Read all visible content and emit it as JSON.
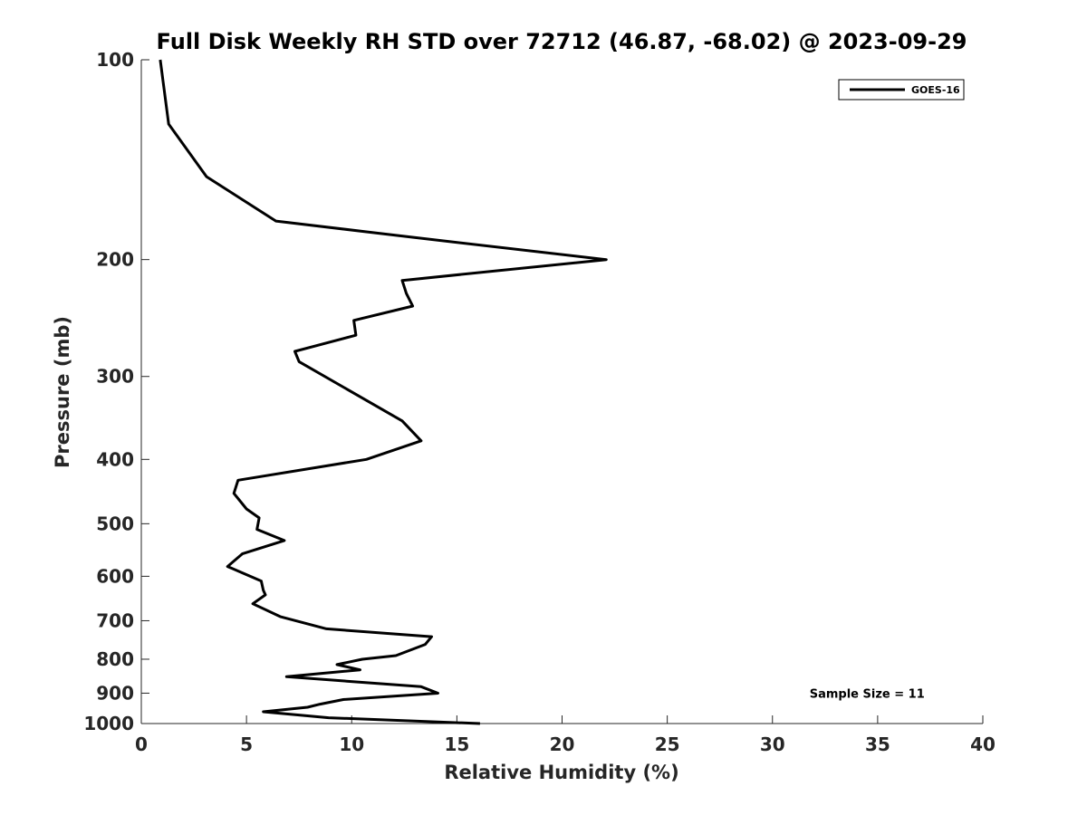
{
  "chart_data": {
    "type": "line",
    "title": "Full Disk Weekly RH STD over 72712 (46.87, -68.02) @ 2023-09-29",
    "xlabel": "Relative Humidity (%)",
    "ylabel": "Pressure (mb)",
    "xlim": [
      0,
      40
    ],
    "ylim": [
      100,
      1000
    ],
    "yscale": "log",
    "y_reversed": true,
    "xticks": [
      0,
      5,
      10,
      15,
      20,
      25,
      30,
      35,
      40
    ],
    "yticks": [
      100,
      200,
      300,
      400,
      500,
      600,
      700,
      800,
      900,
      1000
    ],
    "grid": false,
    "legend_position": "top-right",
    "series": [
      {
        "name": "GOES-16",
        "color": "#000000",
        "x": [
          0.9,
          1.3,
          3.1,
          6.4,
          12.8,
          22.1,
          12.4,
          12.6,
          12.9,
          10.1,
          10.2,
          7.3,
          7.5,
          12.4,
          13.3,
          10.7,
          4.6,
          4.4,
          5.0,
          5.6,
          5.5,
          6.8,
          4.8,
          4.1,
          5.7,
          5.8,
          5.9,
          5.3,
          6.6,
          8.8,
          13.8,
          13.5,
          12.1,
          10.5,
          9.3,
          10.4,
          6.9,
          13.3,
          14.1,
          9.6,
          8.5,
          7.9,
          5.8,
          8.9,
          16.1
        ],
        "y": [
          100,
          125,
          150,
          175,
          185,
          200,
          215,
          225,
          235,
          247,
          260,
          275,
          285,
          350,
          375,
          400,
          430,
          450,
          475,
          490,
          510,
          530,
          555,
          580,
          610,
          630,
          640,
          660,
          690,
          720,
          740,
          760,
          790,
          800,
          815,
          830,
          850,
          880,
          900,
          920,
          935,
          945,
          960,
          980,
          1000
        ]
      }
    ],
    "annotations": [
      {
        "text": "Sample Size = 11",
        "x": 34.5,
        "y": 900
      }
    ]
  }
}
